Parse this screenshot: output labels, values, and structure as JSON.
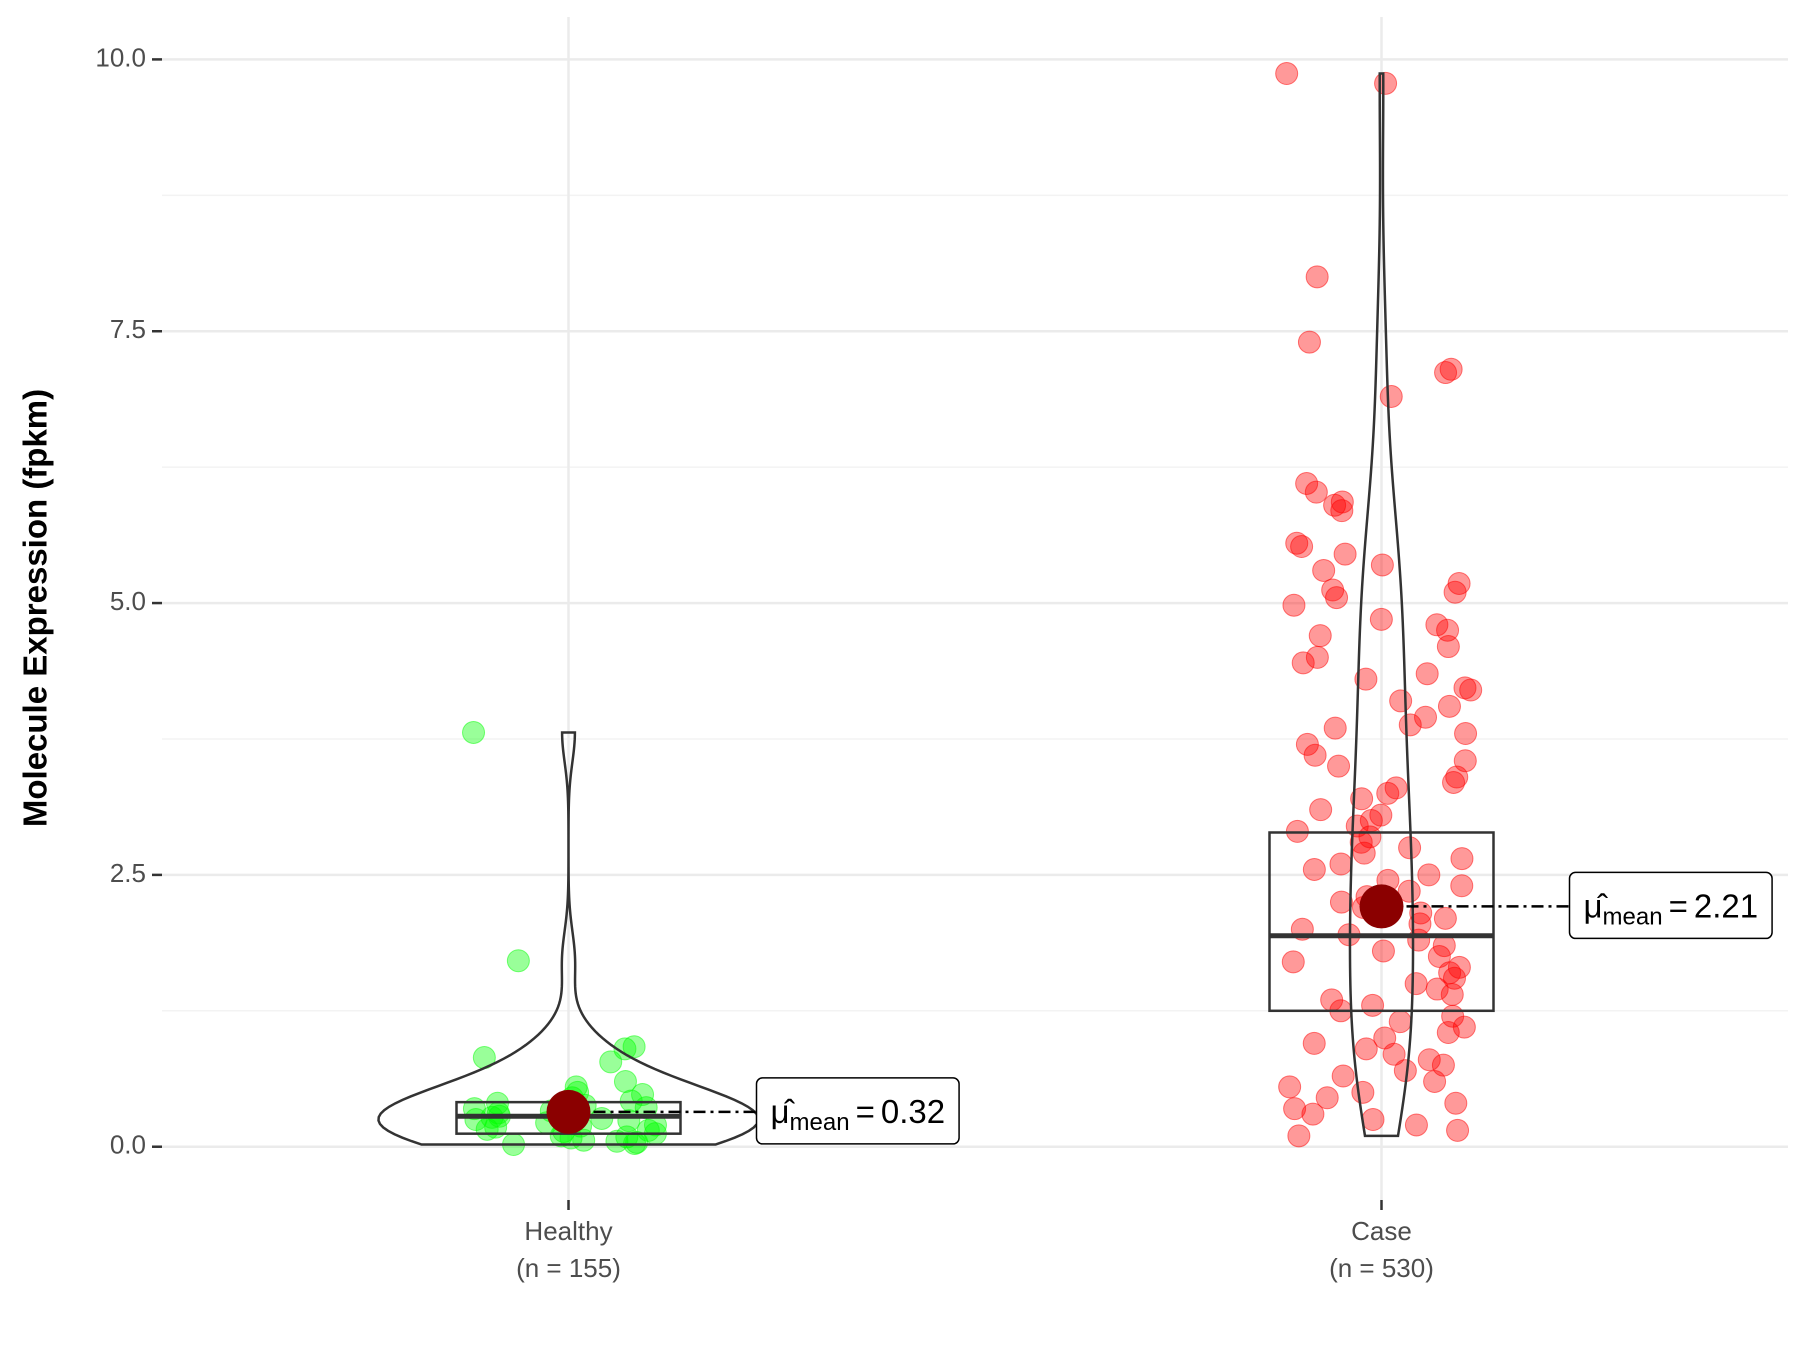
{
  "chart_data": {
    "type": "violin-box",
    "y_label": "Molecule Expression (fpkm)",
    "ylim": [
      -0.49,
      10.39
    ],
    "yticks": [
      {
        "value": 0,
        "label": "0.0"
      },
      2.5,
      {
        "value": 5,
        "label": "5.0"
      },
      7.5,
      {
        "value": 10,
        "label": "10.0"
      }
    ],
    "minor_yticks": [
      1.25,
      3.75,
      6.25,
      8.75
    ],
    "grid": true,
    "mean_symbol": "μ̂",
    "mean_subscript": "mean",
    "mean_equals": "=",
    "mean_color": "#8b0000",
    "categories": [
      "Healthy",
      "Case"
    ],
    "n_labels": [
      "(n = 155)",
      "(n = 530)"
    ],
    "series": [
      {
        "name": "Healthy",
        "color": "#00ff00",
        "q1": 0.12,
        "median": 0.28,
        "q3": 0.41,
        "mean": 0.32,
        "points": [
          3.81,
          1.71,
          0.92,
          0.9,
          0.82,
          0.78,
          0.6,
          0.55,
          0.5,
          0.48,
          0.45,
          0.42,
          0.4,
          0.38,
          0.36,
          0.35,
          0.33,
          0.31,
          0.3,
          0.28,
          0.27,
          0.26,
          0.25,
          0.24,
          0.22,
          0.2,
          0.19,
          0.18,
          0.16,
          0.15,
          0.14,
          0.12,
          0.1,
          0.09,
          0.08,
          0.06,
          0.05,
          0.04,
          0.03,
          0.02
        ]
      },
      {
        "name": "Case",
        "color": "#ff0000",
        "q1": 1.25,
        "median": 1.94,
        "q3": 2.89,
        "mean": 2.21,
        "points": [
          9.87,
          9.78,
          8.0,
          7.4,
          7.15,
          7.12,
          6.9,
          6.1,
          6.02,
          5.93,
          5.9,
          5.85,
          5.55,
          5.52,
          5.45,
          5.35,
          5.3,
          5.18,
          5.12,
          5.1,
          5.05,
          4.98,
          4.85,
          4.8,
          4.75,
          4.7,
          4.6,
          4.5,
          4.45,
          4.35,
          4.3,
          4.22,
          4.2,
          4.1,
          4.05,
          3.95,
          3.88,
          3.85,
          3.8,
          3.7,
          3.6,
          3.55,
          3.5,
          3.4,
          3.35,
          3.3,
          3.25,
          3.2,
          3.1,
          3.05,
          3.0,
          2.95,
          2.9,
          2.85,
          2.8,
          2.75,
          2.7,
          2.65,
          2.6,
          2.55,
          2.5,
          2.45,
          2.4,
          2.35,
          2.3,
          2.25,
          2.2,
          2.15,
          2.1,
          2.05,
          2.0,
          1.95,
          1.9,
          1.85,
          1.8,
          1.75,
          1.7,
          1.65,
          1.6,
          1.55,
          1.5,
          1.45,
          1.4,
          1.35,
          1.3,
          1.25,
          1.2,
          1.15,
          1.1,
          1.05,
          1.0,
          0.95,
          0.9,
          0.85,
          0.8,
          0.75,
          0.7,
          0.65,
          0.6,
          0.55,
          0.5,
          0.45,
          0.4,
          0.35,
          0.3,
          0.25,
          0.2,
          0.15,
          0.1
        ]
      }
    ]
  }
}
